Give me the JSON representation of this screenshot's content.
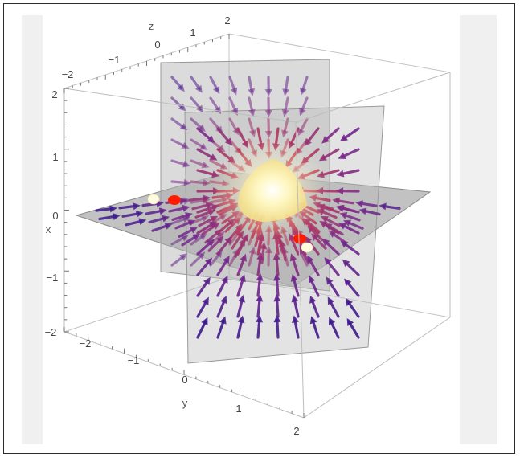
{
  "axes": {
    "x": {
      "label": "x",
      "ticks": [
        "2",
        "1",
        "0",
        "−1",
        "−2"
      ]
    },
    "y": {
      "label": "y",
      "ticks": [
        "−2",
        "−1",
        "0",
        "1",
        "2"
      ]
    },
    "z": {
      "label": "z",
      "ticks": [
        "−2",
        "−1",
        "0",
        "1",
        "2"
      ]
    }
  },
  "colors": {
    "arrow_outer": "#3c1a8c",
    "arrow_mid": "#7a2a8c",
    "arrow_inner": "#e0453a",
    "plane": "#9a9a9a",
    "core_glow": "#fff8c8",
    "charge_red": "#ff0000",
    "charge_white": "#fffbe0",
    "box_edge": "#bdbdbd",
    "side_panel": "#f0f0f0"
  }
}
